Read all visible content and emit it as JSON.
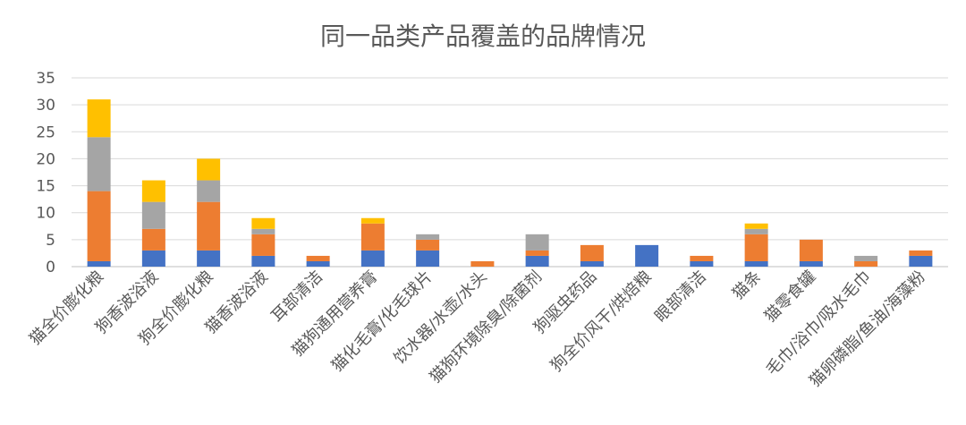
{
  "chart_data": {
    "type": "bar",
    "stacked": true,
    "title": "同一品类产品覆盖的品牌情况",
    "xlabel": "",
    "ylabel": "",
    "ylim": [
      0,
      35
    ],
    "yticks": [
      0,
      5,
      10,
      15,
      20,
      25,
      30,
      35
    ],
    "grid": true,
    "legend": "none",
    "categories": [
      "猫全价膨化粮",
      "狗香波浴液",
      "狗全价膨化粮",
      "猫香波浴液",
      "耳部清洁",
      "猫狗通用营养膏",
      "猫化毛膏/化毛球片",
      "饮水器/水壶/水头",
      "猫狗环境除臭/除菌剂",
      "狗驱虫药品",
      "狗全价风干/烘焙粮",
      "眼部清洁",
      "猫条",
      "猫零食罐",
      "毛巾/浴巾/吸水毛巾",
      "猫卵磷脂/鱼油/海藻粉"
    ],
    "series": [
      {
        "color": "#4472c4",
        "values": [
          1,
          3,
          3,
          2,
          1,
          3,
          3,
          0,
          2,
          1,
          4,
          1,
          1,
          1,
          0,
          2
        ]
      },
      {
        "color": "#ed7d31",
        "values": [
          13,
          4,
          9,
          4,
          1,
          5,
          2,
          1,
          1,
          3,
          0,
          1,
          5,
          4,
          1,
          1
        ]
      },
      {
        "color": "#a5a5a5",
        "values": [
          10,
          5,
          4,
          1,
          0,
          0,
          1,
          0,
          3,
          0,
          0,
          0,
          1,
          0,
          1,
          0
        ]
      },
      {
        "color": "#ffc000",
        "values": [
          7,
          4,
          4,
          2,
          0,
          1,
          0,
          0,
          0,
          0,
          0,
          0,
          1,
          0,
          0,
          0
        ]
      }
    ]
  }
}
